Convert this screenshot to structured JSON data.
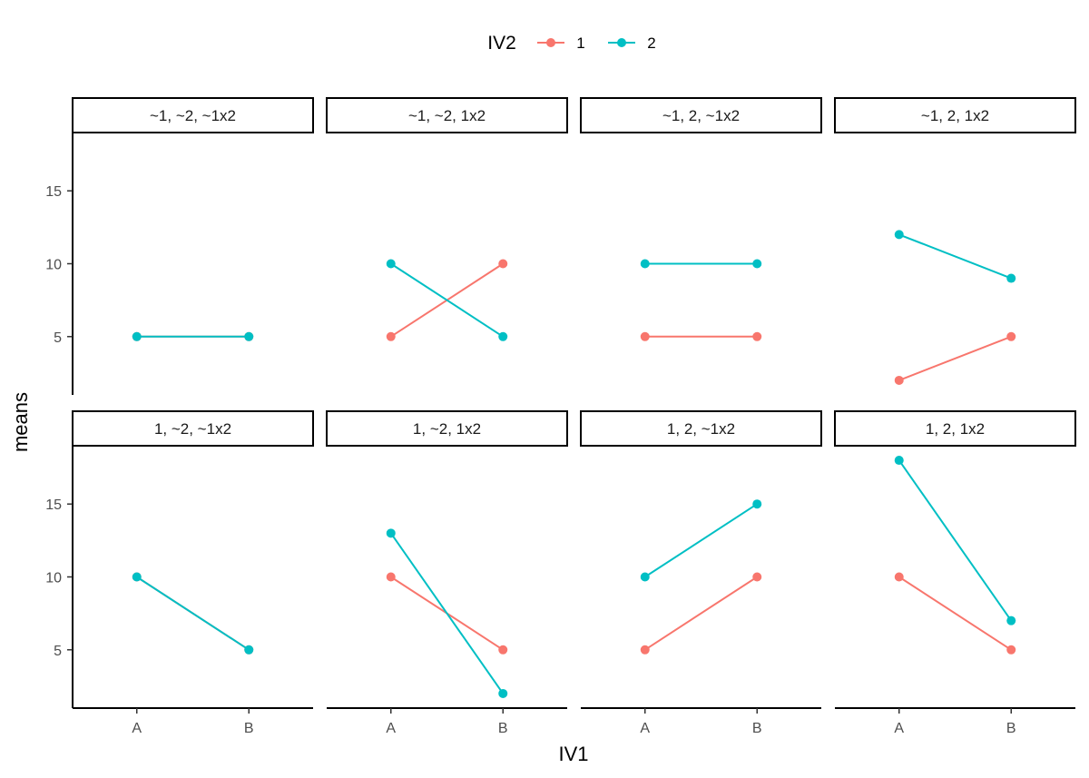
{
  "chart_data": {
    "type": "line",
    "xlabel": "IV1",
    "ylabel": "means",
    "categories": [
      "A",
      "B"
    ],
    "ylim": [
      1,
      19
    ],
    "yticks": [
      5,
      10,
      15
    ],
    "legend": {
      "title": "IV2",
      "position": "top",
      "entries": [
        {
          "name": "1",
          "color": "#F8766D"
        },
        {
          "name": "2",
          "color": "#00BFC4"
        }
      ]
    },
    "facets": [
      {
        "label": "~1, ~2, ~1x2",
        "series": [
          {
            "name": "1",
            "values": [
              5,
              5
            ]
          },
          {
            "name": "2",
            "values": [
              5,
              5
            ]
          }
        ]
      },
      {
        "label": "~1, ~2, 1x2",
        "series": [
          {
            "name": "1",
            "values": [
              5,
              10
            ]
          },
          {
            "name": "2",
            "values": [
              10,
              5
            ]
          }
        ]
      },
      {
        "label": "~1, 2, ~1x2",
        "series": [
          {
            "name": "1",
            "values": [
              5,
              5
            ]
          },
          {
            "name": "2",
            "values": [
              10,
              10
            ]
          }
        ]
      },
      {
        "label": "~1, 2, 1x2",
        "series": [
          {
            "name": "1",
            "values": [
              2,
              5
            ]
          },
          {
            "name": "2",
            "values": [
              12,
              9
            ]
          }
        ]
      },
      {
        "label": "1, ~2, ~1x2",
        "series": [
          {
            "name": "1",
            "values": [
              10,
              5
            ]
          },
          {
            "name": "2",
            "values": [
              10,
              5
            ]
          }
        ]
      },
      {
        "label": "1, ~2, 1x2",
        "series": [
          {
            "name": "1",
            "values": [
              10,
              5
            ]
          },
          {
            "name": "2",
            "values": [
              13,
              2
            ]
          }
        ]
      },
      {
        "label": "1, 2, ~1x2",
        "series": [
          {
            "name": "1",
            "values": [
              5,
              10
            ]
          },
          {
            "name": "2",
            "values": [
              10,
              15
            ]
          }
        ]
      },
      {
        "label": "1, 2, 1x2",
        "series": [
          {
            "name": "1",
            "values": [
              10,
              5
            ]
          },
          {
            "name": "2",
            "values": [
              18,
              7
            ]
          }
        ]
      }
    ]
  }
}
